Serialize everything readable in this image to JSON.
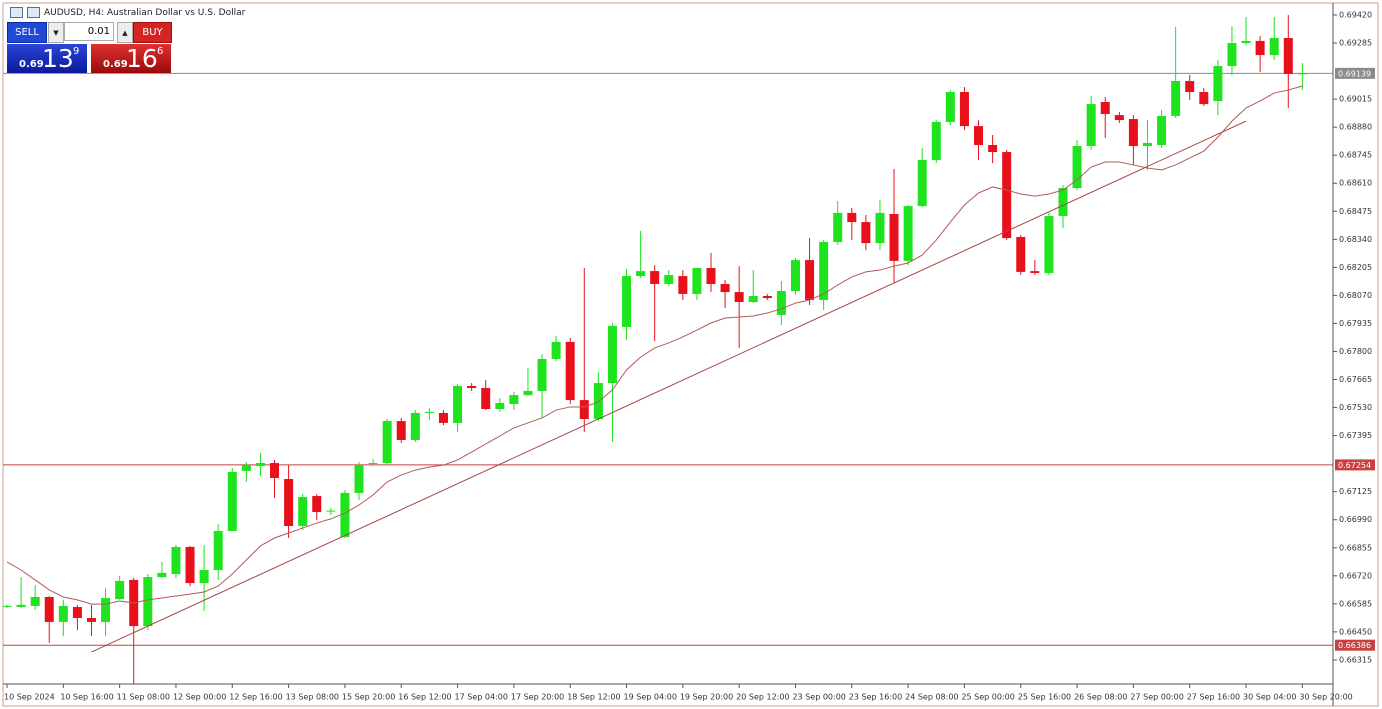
{
  "chart_data": {
    "type": "candlestick",
    "title": "AUDUSD, H4:  Australian Dollar vs U.S. Dollar",
    "categories": [
      "10 Sep 2024",
      null,
      null,
      null,
      "10 Sep 16:00",
      null,
      null,
      null,
      "11 Sep 08:00",
      null,
      null,
      null,
      "12 Sep 00:00",
      null,
      null,
      null,
      "12 Sep 16:00",
      null,
      null,
      null,
      "13 Sep 08:00",
      null,
      null,
      null,
      "15 Sep 20:00",
      null,
      null,
      null,
      "16 Sep 12:00",
      null,
      null,
      null,
      "17 Sep 04:00",
      null,
      null,
      null,
      "17 Sep 20:00",
      null,
      null,
      null,
      "18 Sep 12:00",
      null,
      null,
      null,
      "19 Sep 04:00",
      null,
      null,
      null,
      "19 Sep 20:00",
      null,
      null,
      null,
      "20 Sep 12:00",
      null,
      null,
      null,
      "23 Sep 00:00",
      null,
      null,
      null,
      "23 Sep 16:00",
      null,
      null,
      null,
      "24 Sep 08:00",
      null,
      null,
      null,
      "25 Sep 00:00",
      null,
      null,
      null,
      "25 Sep 16:00",
      null,
      null,
      null,
      "26 Sep 08:00",
      null,
      null,
      null,
      "27 Sep 00:00",
      null,
      null,
      null,
      "27 Sep 16:00",
      null,
      null,
      null,
      "30 Sep 04:00",
      null,
      null,
      null,
      "30 Sep 20:00"
    ],
    "open": [
      0.6657,
      0.6657,
      0.66575,
      0.66618,
      0.66498,
      0.6657,
      0.66517,
      0.66498,
      0.66608,
      0.667,
      0.66478,
      0.66714,
      0.66729,
      0.66859,
      0.66685,
      0.66748,
      0.66936,
      0.67225,
      0.67249,
      0.67263,
      0.67186,
      0.6696,
      0.67104,
      0.67032,
      0.66907,
      0.67119,
      0.67258,
      0.67263,
      0.67465,
      0.67374,
      0.67504,
      0.67504,
      0.67456,
      0.67634,
      0.67624,
      0.67523,
      0.67547,
      0.6759,
      0.6761,
      0.67764,
      0.67846,
      0.67566,
      0.67475,
      0.67648,
      0.67918,
      0.68163,
      0.68187,
      0.68125,
      0.68163,
      0.68077,
      0.68202,
      0.68125,
      0.68086,
      0.68038,
      0.68067,
      0.67976,
      0.68091,
      0.6824,
      0.68048,
      0.68327,
      0.68467,
      0.68423,
      0.68322,
      0.68462,
      0.68236,
      0.685,
      0.68722,
      0.68905,
      0.69049,
      0.68885,
      0.68794,
      0.6876,
      0.68351,
      0.68187,
      0.68178,
      0.68452,
      0.68587,
      0.68789,
      0.69001,
      0.68938,
      0.68919,
      0.68789,
      0.68794,
      0.68934,
      0.69102,
      0.69049,
      0.69006,
      0.69174,
      0.69285,
      0.69295,
      0.69227,
      0.69309,
      0.69136
    ],
    "high": [
      0.6658,
      0.66714,
      0.66676,
      0.66623,
      0.66604,
      0.6658,
      0.6658,
      0.66661,
      0.66719,
      0.6671,
      0.66729,
      0.66787,
      0.66868,
      0.66864,
      0.66868,
      0.66969,
      0.67239,
      0.67268,
      0.67311,
      0.67278,
      0.67253,
      0.67114,
      0.67114,
      0.67046,
      0.67133,
      0.67268,
      0.67282,
      0.67475,
      0.6748,
      0.67518,
      0.67528,
      0.67518,
      0.67643,
      0.67648,
      0.67663,
      0.67576,
      0.67605,
      0.6772,
      0.67788,
      0.67875,
      0.67865,
      0.68202,
      0.67701,
      0.67937,
      0.68197,
      0.6838,
      0.68216,
      0.68192,
      0.68192,
      0.68202,
      0.68274,
      0.68144,
      0.68211,
      0.68192,
      0.68077,
      0.68139,
      0.6825,
      0.68346,
      0.68337,
      0.68524,
      0.68491,
      0.68457,
      0.68529,
      0.68678,
      0.68505,
      0.6878,
      0.68914,
      0.69059,
      0.69073,
      0.68914,
      0.68842,
      0.6877,
      0.68361,
      0.6824,
      0.68467,
      0.68601,
      0.68818,
      0.6903,
      0.69025,
      0.68953,
      0.68938,
      0.68914,
      0.68962,
      0.69362,
      0.69131,
      0.69068,
      0.69203,
      0.69367,
      0.6941,
      0.69319,
      0.6941,
      0.6942,
      0.69189
    ],
    "low": [
      0.66565,
      0.66565,
      0.66556,
      0.66397,
      0.6643,
      0.66459,
      0.6643,
      0.6643,
      0.66604,
      0.66199,
      0.66459,
      0.6671,
      0.6671,
      0.66671,
      0.66551,
      0.667,
      0.66936,
      0.67172,
      0.672,
      0.67095,
      0.66902,
      0.66941,
      0.66989,
      0.67013,
      0.66902,
      0.67085,
      0.67249,
      0.67253,
      0.67359,
      0.67364,
      0.6747,
      0.67446,
      0.67412,
      0.6761,
      0.67518,
      0.67509,
      0.67518,
      0.67586,
      0.6748,
      0.67754,
      0.67547,
      0.67412,
      0.67465,
      0.67364,
      0.67855,
      0.68154,
      0.6785,
      0.68115,
      0.68048,
      0.68048,
      0.68086,
      0.68009,
      0.67817,
      0.68033,
      0.68048,
      0.67927,
      0.68072,
      0.68024,
      0.68,
      0.68313,
      0.68337,
      0.68289,
      0.68289,
      0.6813,
      0.68216,
      0.68495,
      0.68707,
      0.6889,
      0.68866,
      0.68722,
      0.68707,
      0.68337,
      0.68168,
      0.68168,
      0.68168,
      0.68394,
      0.68577,
      0.6877,
      0.68828,
      0.689,
      0.68698,
      0.68674,
      0.6878,
      0.68924,
      0.69011,
      0.68982,
      0.68938,
      0.69131,
      0.69275,
      0.69145,
      0.69203,
      0.68972,
      0.69059
    ],
    "close": [
      0.66575,
      0.6658,
      0.66618,
      0.66498,
      0.66575,
      0.66517,
      0.66498,
      0.66613,
      0.66695,
      0.66478,
      0.66714,
      0.66734,
      0.66859,
      0.66685,
      0.66748,
      0.66936,
      0.6722,
      0.67253,
      0.67263,
      0.67191,
      0.6696,
      0.67099,
      0.67027,
      0.67034,
      0.67119,
      0.67253,
      0.67263,
      0.67465,
      0.67374,
      0.67504,
      0.67509,
      0.67456,
      0.67634,
      0.67624,
      0.67523,
      0.67552,
      0.6759,
      0.6761,
      0.67764,
      0.67846,
      0.67566,
      0.67475,
      0.67648,
      0.67923,
      0.68163,
      0.68187,
      0.68125,
      0.68168,
      0.68077,
      0.68202,
      0.68125,
      0.68086,
      0.68038,
      0.68067,
      0.68057,
      0.68091,
      0.6824,
      0.68048,
      0.68327,
      0.68467,
      0.68423,
      0.68322,
      0.68467,
      0.68236,
      0.685,
      0.68722,
      0.68905,
      0.69049,
      0.68885,
      0.68794,
      0.6876,
      0.68346,
      0.68183,
      0.68178,
      0.68452,
      0.68587,
      0.68789,
      0.68991,
      0.68943,
      0.68914,
      0.68789,
      0.68804,
      0.68934,
      0.69102,
      0.69049,
      0.68991,
      0.69174,
      0.69285,
      0.69295,
      0.69227,
      0.69309,
      0.69136,
      0.69139
    ],
    "up_color": "#1ee31e",
    "down_color": "#e8101a",
    "ma": {
      "color": "#b35a5a",
      "values": [
        0.66787,
        0.66748,
        0.667,
        0.66652,
        0.66618,
        0.66604,
        0.66584,
        0.66584,
        0.66599,
        0.66589,
        0.66604,
        0.66613,
        0.66623,
        0.66632,
        0.66642,
        0.66671,
        0.66729,
        0.66796,
        0.66864,
        0.66902,
        0.66926,
        0.6695,
        0.66974,
        0.66994,
        0.67022,
        0.67061,
        0.67109,
        0.67172,
        0.67205,
        0.67229,
        0.67244,
        0.67253,
        0.67278,
        0.67316,
        0.67355,
        0.67393,
        0.67432,
        0.67456,
        0.6748,
        0.67518,
        0.67533,
        0.67533,
        0.67557,
        0.67615,
        0.67711,
        0.67773,
        0.67817,
        0.67841,
        0.6787,
        0.67903,
        0.67937,
        0.67961,
        0.67966,
        0.67971,
        0.67985,
        0.68005,
        0.68033,
        0.68048,
        0.68077,
        0.6812,
        0.68159,
        0.68183,
        0.68192,
        0.68211,
        0.68226,
        0.68264,
        0.68337,
        0.68423,
        0.68505,
        0.68563,
        0.68592,
        0.68577,
        0.68558,
        0.68548,
        0.68558,
        0.68577,
        0.68626,
        0.68688,
        0.68712,
        0.68712,
        0.68698,
        0.68683,
        0.68674,
        0.68698,
        0.68731,
        0.68765,
        0.68832,
        0.68909,
        0.68972,
        0.69006,
        0.69044,
        0.69059,
        0.69078
      ]
    },
    "trendline": {
      "color": "#a84646",
      "x": [
        6,
        88
      ],
      "values": [
        0.66353,
        0.68909
      ]
    },
    "hlines": [
      {
        "value": 0.69139,
        "color": "#8a8a8a"
      },
      {
        "value": 0.67254,
        "color": "#c84040"
      },
      {
        "value": 0.66386,
        "color": "#c84040"
      }
    ],
    "ylim": [
      0.66204,
      0.69468
    ],
    "yticks": [
      {
        "value": 0.6942,
        "label": "0.69420"
      },
      0.69285,
      0.69015,
      {
        "value": 0.6888,
        "label": "0.68880"
      },
      0.68745,
      {
        "value": 0.6861,
        "label": "0.68610"
      },
      0.68475,
      {
        "value": 0.6834,
        "label": "0.68340"
      },
      0.68205,
      {
        "value": 0.6807,
        "label": "0.68070"
      },
      0.67935,
      {
        "value": 0.678,
        "label": "0.67800"
      },
      0.67665,
      {
        "value": 0.6753,
        "label": "0.67530"
      },
      0.67395,
      0.67125,
      {
        "value": 0.6699,
        "label": "0.66990"
      },
      0.66855,
      {
        "value": 0.6672,
        "label": "0.66720"
      },
      0.66585,
      {
        "value": 0.6645,
        "label": "0.66450"
      },
      0.66315
    ],
    "grid": false
  },
  "trade_panel": {
    "sell_label": "SELL",
    "buy_label": "BUY",
    "lot": "0.01",
    "sell": {
      "prefix": "0.69",
      "big": "13",
      "pip": "9"
    },
    "buy": {
      "prefix": "0.69",
      "big": "16",
      "pip": "6"
    }
  }
}
